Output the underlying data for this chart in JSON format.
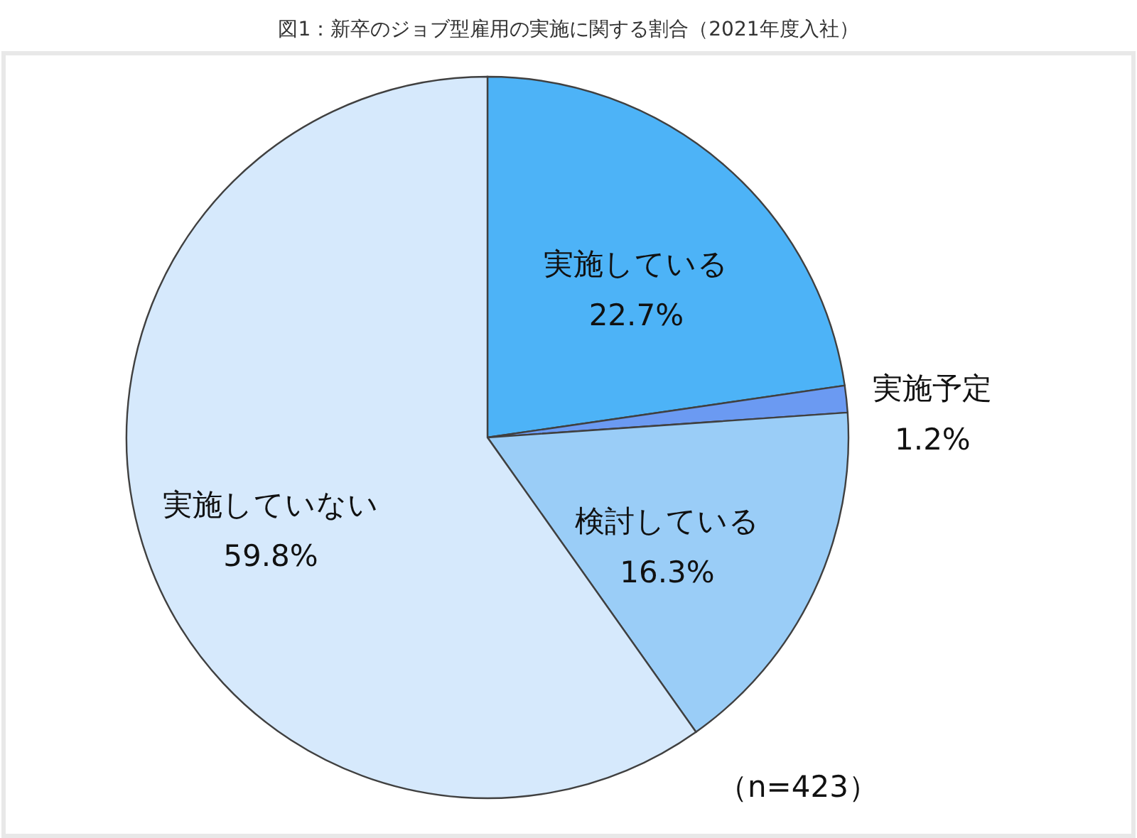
{
  "chart_data": {
    "type": "pie",
    "title": "図1：新卒のジョブ型雇用の実施に関する割合（2021年度入社）",
    "categories": [
      "実施している",
      "実施予定",
      "検討している",
      "実施していない"
    ],
    "values": [
      22.7,
      1.2,
      16.3,
      59.8
    ],
    "value_labels": [
      "22.7%",
      "1.2%",
      "16.3%",
      "59.8%"
    ],
    "colors": [
      "#4db3f7",
      "#6b9af2",
      "#9acdf7",
      "#d6e9fc"
    ],
    "annotations": [
      "（n=423）"
    ]
  }
}
